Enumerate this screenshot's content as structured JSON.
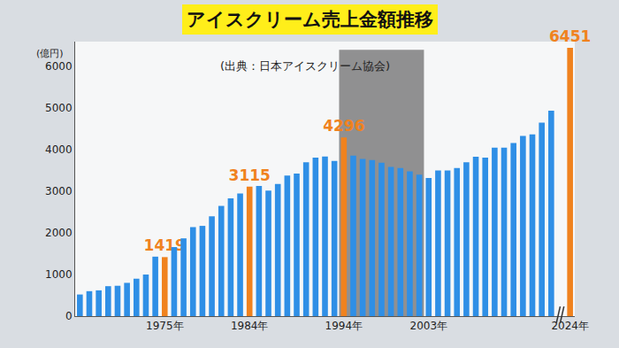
{
  "chart_data": {
    "type": "bar",
    "title": "アイスクリーム売上金額推移",
    "subtitle": "(出典：日本アイスクリーム協会)",
    "ylabel": "(億円)",
    "categories": [
      null,
      null,
      null,
      null,
      null,
      null,
      null,
      null,
      null,
      "1975年",
      null,
      null,
      null,
      null,
      null,
      null,
      null,
      null,
      "1984年",
      null,
      null,
      null,
      null,
      null,
      null,
      null,
      null,
      null,
      "1994年",
      null,
      null,
      null,
      null,
      null,
      null,
      null,
      null,
      "2003年",
      null,
      null,
      null,
      null,
      null,
      null,
      null,
      null,
      null,
      null,
      null,
      null,
      null,
      null,
      "2024年"
    ],
    "values": [
      520,
      600,
      620,
      720,
      730,
      800,
      900,
      1000,
      1430,
      1419,
      1660,
      1870,
      2140,
      2170,
      2400,
      2650,
      2830,
      2950,
      3115,
      3130,
      3020,
      3180,
      3380,
      3430,
      3700,
      3810,
      3840,
      3730,
      4296,
      3860,
      3780,
      3750,
      3690,
      3590,
      3560,
      3480,
      3400,
      3320,
      3500,
      3500,
      3560,
      3700,
      3830,
      3810,
      4050,
      4050,
      4160,
      4330,
      4370,
      4650,
      4940,
      null,
      6451
    ],
    "value_labels": [
      null,
      null,
      null,
      null,
      null,
      null,
      null,
      null,
      null,
      "1419",
      null,
      null,
      null,
      null,
      null,
      null,
      null,
      null,
      "3115",
      null,
      null,
      null,
      null,
      null,
      null,
      null,
      null,
      null,
      "4296",
      null,
      null,
      null,
      null,
      null,
      null,
      null,
      null,
      null,
      null,
      null,
      null,
      null,
      null,
      null,
      null,
      null,
      null,
      null,
      null,
      null,
      null,
      null,
      "6451"
    ],
    "colors": [
      "#2f8fe6",
      "#2f8fe6",
      "#2f8fe6",
      "#2f8fe6",
      "#2f8fe6",
      "#2f8fe6",
      "#2f8fe6",
      "#2f8fe6",
      "#2f8fe6",
      "#f0821e",
      "#2f8fe6",
      "#2f8fe6",
      "#2f8fe6",
      "#2f8fe6",
      "#2f8fe6",
      "#2f8fe6",
      "#2f8fe6",
      "#2f8fe6",
      "#f0821e",
      "#2f8fe6",
      "#2f8fe6",
      "#2f8fe6",
      "#2f8fe6",
      "#2f8fe6",
      "#2f8fe6",
      "#2f8fe6",
      "#2f8fe6",
      "#2f8fe6",
      "#f0821e",
      "#2f8fe6",
      "#2f8fe6",
      "#2f8fe6",
      "#2f8fe6",
      "#2f8fe6",
      "#2f8fe6",
      "#2f8fe6",
      "#2f8fe6",
      "#2f8fe6",
      "#2f8fe6",
      "#2f8fe6",
      "#2f8fe6",
      "#2f8fe6",
      "#2f8fe6",
      "#2f8fe6",
      "#2f8fe6",
      "#2f8fe6",
      "#2f8fe6",
      "#2f8fe6",
      "#2f8fe6",
      "#2f8fe6",
      "#2f8fe6",
      "#2f8fe6",
      "#f0821e"
    ],
    "data_labels": true,
    "ylim": [
      0,
      6600
    ],
    "yticks": [
      0,
      1000,
      2000,
      3000,
      4000,
      5000,
      6000
    ],
    "grid": false
  }
}
